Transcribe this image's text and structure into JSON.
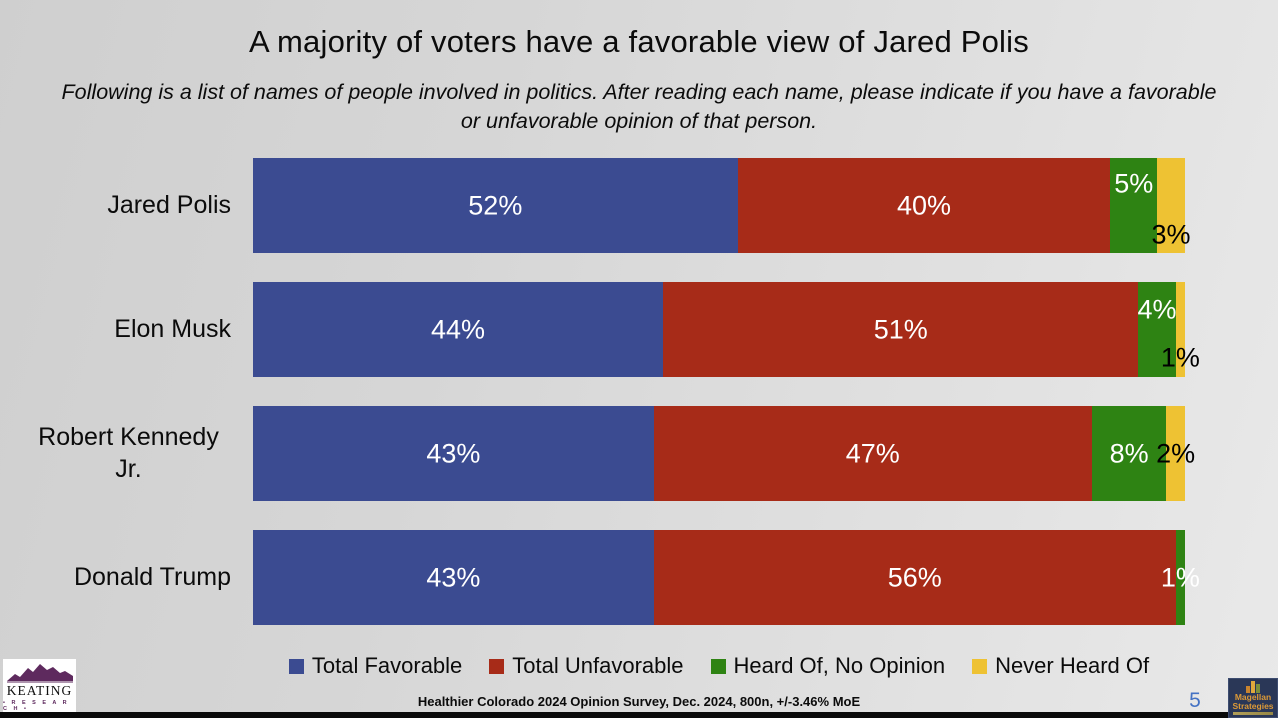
{
  "page": {
    "title": "A majority of voters have a favorable view of Jared Polis",
    "subtitle": "Following is a list of names of people involved in politics. After reading each name, please indicate if you have a favorable or unfavorable opinion of that person."
  },
  "chart_data": {
    "type": "bar",
    "orientation": "horizontal",
    "stacked": true,
    "title": "A majority of voters have a favorable view of Jared Polis",
    "categories": [
      "Jared Polis",
      "Elon Musk",
      "Robert Kennedy Jr.",
      "Donald Trump"
    ],
    "series": [
      {
        "name": "Total Favorable",
        "color": "#3b4b91",
        "label_color": "#ffffff",
        "values": [
          52,
          44,
          43,
          43
        ]
      },
      {
        "name": "Total Unfavorable",
        "color": "#a72b18",
        "label_color": "#ffffff",
        "values": [
          40,
          51,
          47,
          56
        ]
      },
      {
        "name": "Heard Of, No Opinion",
        "color": "#2e8313",
        "label_color": "#ffffff",
        "values": [
          5,
          4,
          8,
          1
        ]
      },
      {
        "name": "Never Heard Of",
        "color": "#eec233",
        "label_color": "#000000",
        "values": [
          3,
          1,
          2,
          0
        ]
      }
    ],
    "xlim": [
      0,
      100
    ],
    "value_suffix": "%",
    "grid": false,
    "legend_position": "bottom",
    "label_overrides": {
      "0-2": {
        "dy": -22
      },
      "0-3": {
        "dy": 29
      },
      "1-2": {
        "dy": -20
      },
      "1-3": {
        "dy": 28
      }
    }
  },
  "footer": {
    "note": "Healthier Colorado 2024 Opinion Survey, Dec. 2024, 800n, +/-3.46% MoE",
    "page_number": "5"
  },
  "logos": {
    "keating": {
      "name": "KEATING",
      "sub": "• R E S E A R C H •"
    },
    "magellan": {
      "line1": "Magellan",
      "line2": "Strategies"
    }
  }
}
